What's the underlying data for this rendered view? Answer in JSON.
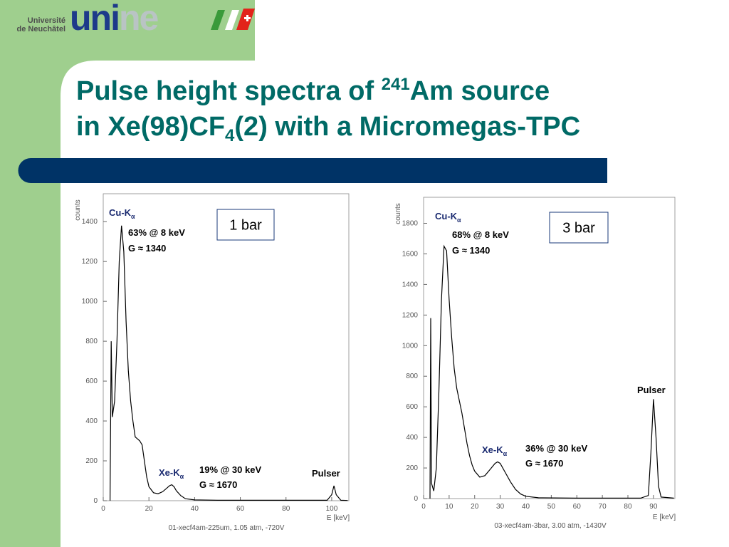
{
  "header": {
    "university": [
      "Université",
      "de Neuchâtel"
    ],
    "logo": [
      "uni",
      "ne"
    ]
  },
  "title": {
    "line1": {
      "text": "Pulse height spectra of ",
      "sup": "241",
      "after": "Am source"
    },
    "line2": {
      "text": "in Xe(98)CF",
      "sub": "4",
      "after": "(2) with a Micromegas-TPC"
    }
  },
  "chart_data": [
    {
      "type": "line",
      "y_label": "counts",
      "x_label": "E [keV]",
      "caption": "01-xecf4am-225um, 1.05 atm, -720V",
      "box_label": "1 bar",
      "annotations": [
        {
          "text": "Cu-K",
          "sub": "α"
        },
        "63% @ 8 keV",
        "G ≈ 1340",
        {
          "text": "Xe-K",
          "sub": "α"
        },
        "19% @ 30 keV",
        "G ≈ 1670",
        "Pulser"
      ],
      "x": [
        3,
        3.5,
        4,
        5,
        6,
        7,
        8,
        9,
        10,
        11,
        12,
        13,
        14,
        15,
        16,
        17,
        18,
        19,
        20,
        22,
        24,
        26,
        28,
        29,
        30,
        31,
        32,
        34,
        36,
        40,
        50,
        60,
        80,
        98,
        100,
        101,
        102,
        104,
        107
      ],
      "series": [
        {
          "color": "#000000",
          "values": [
            0,
            800,
            420,
            500,
            800,
            1200,
            1380,
            1250,
            900,
            650,
            500,
            400,
            320,
            310,
            300,
            280,
            200,
            120,
            70,
            40,
            35,
            45,
            65,
            75,
            80,
            70,
            50,
            25,
            10,
            4,
            2,
            2,
            2,
            2,
            30,
            75,
            30,
            2,
            1
          ]
        }
      ],
      "xlim": [
        0,
        107.5
      ],
      "ylim": [
        0,
        1540
      ],
      "xticks": [
        0,
        20,
        40,
        60,
        80,
        100
      ],
      "yticks": [
        0,
        200,
        400,
        600,
        800,
        1000,
        1200,
        1400
      ]
    },
    {
      "type": "line",
      "y_label": "counts",
      "x_label": "E [keV]",
      "caption": "03-xecf4am-3bar, 3.00 atm, -1430V",
      "box_label": "3 bar",
      "annotations": [
        {
          "text": "Cu-K",
          "sub": "α"
        },
        "68% @ 8 keV",
        "G ≈ 1340",
        {
          "text": "Xe-K",
          "sub": "α"
        },
        "36% @ 30 keV",
        "G ≈ 1670",
        "Pulser"
      ],
      "x": [
        2.5,
        2.8,
        3.1,
        4,
        5,
        6,
        7,
        8,
        9,
        10,
        11,
        12,
        13,
        14,
        15,
        16,
        17,
        18,
        19,
        20,
        22,
        24,
        26,
        28,
        29,
        30,
        32,
        34,
        36,
        38,
        40,
        45,
        60,
        85,
        88,
        89,
        90,
        91,
        92,
        93,
        98
      ],
      "series": [
        {
          "color": "#000000",
          "values": [
            0,
            1180,
            100,
            50,
            200,
            700,
            1300,
            1650,
            1620,
            1300,
            1050,
            850,
            720,
            640,
            560,
            460,
            360,
            280,
            220,
            180,
            140,
            150,
            190,
            230,
            240,
            230,
            170,
            110,
            60,
            30,
            15,
            5,
            3,
            3,
            20,
            300,
            650,
            400,
            80,
            10,
            3
          ]
        }
      ],
      "xlim": [
        0,
        98.4
      ],
      "ylim": [
        0,
        1970
      ],
      "xticks": [
        0,
        10,
        20,
        30,
        40,
        50,
        60,
        70,
        80,
        90
      ],
      "yticks": [
        0,
        200,
        400,
        600,
        800,
        1000,
        1200,
        1400,
        1600,
        1800
      ]
    }
  ]
}
